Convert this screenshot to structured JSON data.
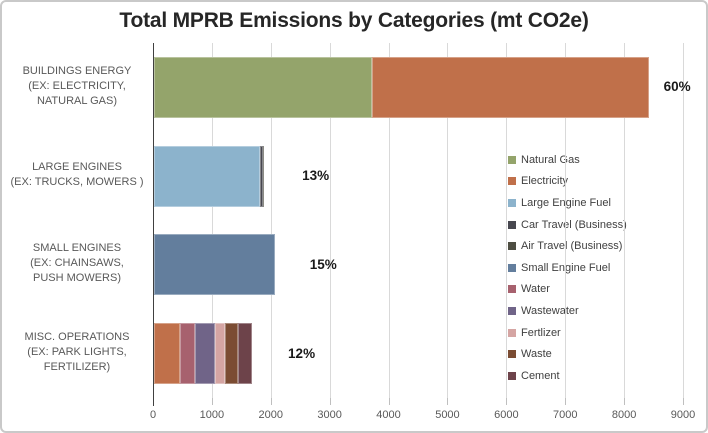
{
  "chart_data": {
    "type": "bar",
    "orientation": "horizontal",
    "stacked": true,
    "title": "Total MPRB Emissions by Categories (mt CO2e)",
    "xlabel": "",
    "ylabel": "",
    "xlim": [
      0,
      9000
    ],
    "x_tick_interval": 1000,
    "x_tick_labels": [
      "0",
      "1000",
      "2000",
      "3000",
      "4000",
      "5000",
      "6000",
      "7000",
      "8000",
      "9000"
    ],
    "grid": true,
    "legend_position": "inside-right",
    "series": [
      {
        "name": "Natural Gas",
        "color": "#94a46b"
      },
      {
        "name": "Electricity",
        "color": "#c0704a"
      },
      {
        "name": "Large Engine Fuel",
        "color": "#8cb3cc"
      },
      {
        "name": "Car Travel (Business)",
        "color": "#47474f"
      },
      {
        "name": "Air Travel (Business)",
        "color": "#4e4e42"
      },
      {
        "name": "Small Engine Fuel",
        "color": "#637e9d"
      },
      {
        "name": "Water",
        "color": "#a7616e"
      },
      {
        "name": "Wastewater",
        "color": "#706488"
      },
      {
        "name": "Fertlizer",
        "color": "#d5a5a3"
      },
      {
        "name": "Waste",
        "color": "#7b4c33"
      },
      {
        "name": "Cement",
        "color": "#6d434a"
      }
    ],
    "bars": [
      {
        "category_lines": [
          "BUILDINGS ENERGY",
          "(EX: ELECTRICITY,",
          "NATURAL GAS)"
        ],
        "percent_label": "60%",
        "segments": [
          {
            "series": "Natural Gas",
            "value": 3700
          },
          {
            "series": "Electricity",
            "value": 4700
          }
        ]
      },
      {
        "category_lines": [
          "LARGE ENGINES",
          "(EX:  TRUCKS, MOWERS )"
        ],
        "percent_label": "13%",
        "segments": [
          {
            "series": "Large Engine Fuel",
            "value": 1800
          },
          {
            "series": "Car Travel (Business)",
            "value": 45
          },
          {
            "series": "Air Travel (Business)",
            "value": 25
          }
        ]
      },
      {
        "category_lines": [
          "SMALL ENGINES",
          "(EX: CHAINSAWS,",
          "PUSH MOWERS)"
        ],
        "percent_label": "15%",
        "segments": [
          {
            "series": "Small Engine Fuel",
            "value": 2050
          }
        ]
      },
      {
        "category_lines": [
          "MISC. OPERATIONS",
          "(EX: PARK LIGHTS,",
          "FERTILIZER)"
        ],
        "percent_label": "12%",
        "segments": [
          {
            "series": "Electricity",
            "value": 440
          },
          {
            "series": "Water",
            "value": 255
          },
          {
            "series": "Wastewater",
            "value": 340
          },
          {
            "series": "Fertlizer",
            "value": 170
          },
          {
            "series": "Waste",
            "value": 220
          },
          {
            "series": "Cement",
            "value": 240
          }
        ]
      }
    ]
  }
}
